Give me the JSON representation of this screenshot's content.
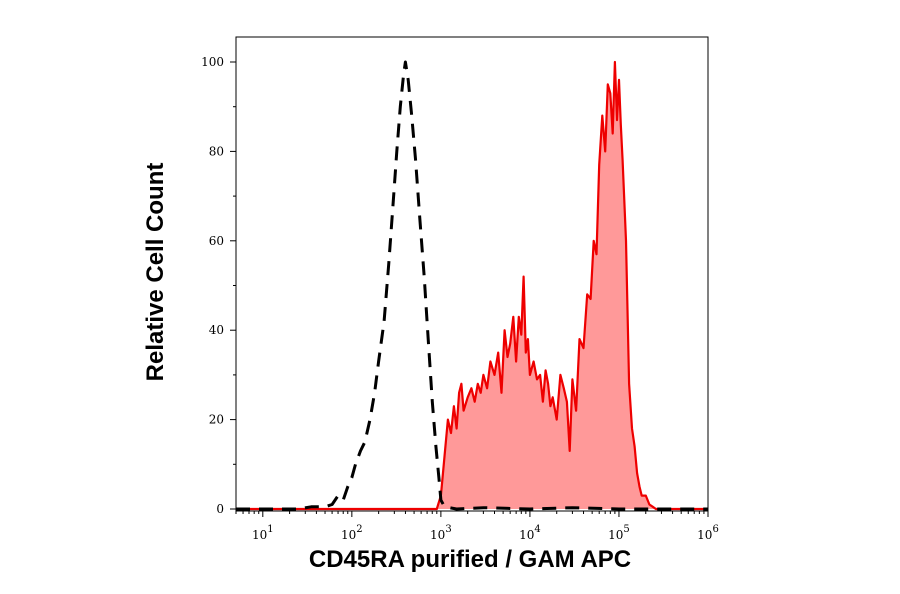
{
  "chart_data": {
    "type": "area",
    "xlabel": "CD45RA purified / GAM APC",
    "ylabel": "Relative Cell Count",
    "x_scale": "log",
    "xlim": [
      5,
      1000000
    ],
    "ylim": [
      0,
      105
    ],
    "x_ticks": [
      {
        "value": 10,
        "base": "10",
        "exp": "1"
      },
      {
        "value": 100,
        "base": "10",
        "exp": "2"
      },
      {
        "value": 1000,
        "base": "10",
        "exp": "3"
      },
      {
        "value": 10000,
        "base": "10",
        "exp": "4"
      },
      {
        "value": 100000,
        "base": "10",
        "exp": "5"
      },
      {
        "value": 1000000,
        "base": "10",
        "exp": "6"
      }
    ],
    "y_ticks": [
      "0",
      "20",
      "40",
      "60",
      "80",
      "100"
    ],
    "series": [
      {
        "style": "dashed",
        "color": "#000000",
        "fill": "none",
        "x": [
          5,
          25,
          35,
          50,
          60,
          70,
          80,
          90,
          100,
          110,
          125,
          140,
          160,
          180,
          200,
          230,
          260,
          290,
          320,
          350,
          380,
          400,
          430,
          470,
          520,
          580,
          650,
          720,
          800,
          880,
          950,
          1000,
          1100,
          1500,
          3000,
          10000,
          30000,
          100000,
          300000,
          1000000
        ],
        "y": [
          0,
          0,
          0.5,
          0.5,
          1,
          3,
          2,
          5,
          7,
          10,
          13,
          15,
          20,
          26,
          33,
          42,
          55,
          68,
          80,
          90,
          97,
          100,
          96,
          88,
          78,
          65,
          52,
          38,
          24,
          14,
          7,
          2,
          0.5,
          0,
          0.3,
          0,
          0.3,
          0,
          0,
          0
        ]
      },
      {
        "style": "solid",
        "color": "#ee0000",
        "fill": "#ff9999",
        "x": [
          5,
          900,
          1000,
          1100,
          1200,
          1300,
          1400,
          1500,
          1600,
          1700,
          1800,
          2000,
          2200,
          2400,
          2600,
          2800,
          3000,
          3300,
          3600,
          4000,
          4400,
          4800,
          5200,
          5600,
          6000,
          6500,
          7000,
          7500,
          8000,
          8500,
          9000,
          9500,
          10000,
          11000,
          12000,
          13000,
          14000,
          15000,
          16000,
          17000,
          18000,
          20000,
          22000,
          24000,
          26000,
          28000,
          30000,
          33000,
          36000,
          40000,
          44000,
          48000,
          52000,
          56000,
          60000,
          65000,
          70000,
          75000,
          80000,
          85000,
          90000,
          95000,
          100000,
          105000,
          110000,
          120000,
          130000,
          140000,
          150000,
          160000,
          170000,
          180000,
          200000,
          220000,
          240000,
          260000,
          300000,
          1000000
        ],
        "y": [
          0,
          0,
          3,
          12,
          20,
          17,
          23,
          18,
          26,
          28,
          22,
          25,
          27,
          24,
          28,
          26,
          30,
          27,
          33,
          30,
          35,
          26,
          40,
          34,
          37,
          43,
          33,
          43,
          39,
          52,
          35,
          38,
          30,
          33,
          29,
          30,
          24,
          31,
          28,
          23,
          25,
          20,
          30,
          27,
          24,
          13,
          29,
          22,
          38,
          36,
          48,
          47,
          60,
          57,
          77,
          88,
          80,
          95,
          93,
          84,
          100,
          87,
          96,
          86,
          78,
          60,
          28,
          18,
          14,
          8,
          5,
          3,
          3,
          1,
          0.5,
          0,
          0,
          0
        ]
      }
    ]
  }
}
